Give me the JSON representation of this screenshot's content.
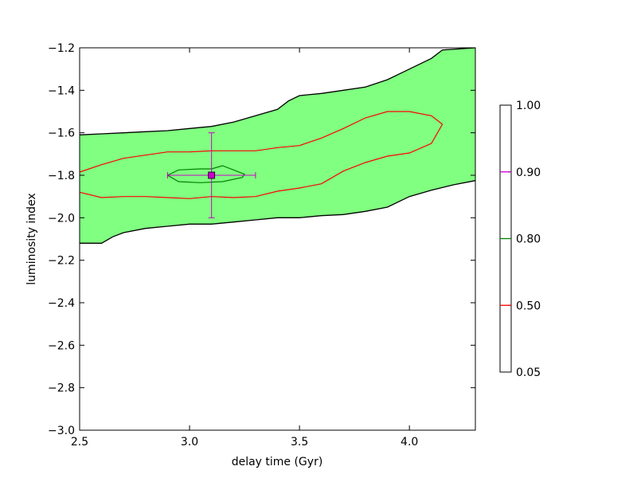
{
  "chart_data": {
    "type": "contour",
    "title": "",
    "xlabel": "delay time (Gyr)",
    "ylabel": "luminosity index",
    "xlim": [
      2.5,
      4.3
    ],
    "ylim": [
      -3.0,
      -1.2
    ],
    "x_ticks": [
      2.5,
      3.0,
      3.5,
      4.0
    ],
    "x_tick_labels": [
      "2.5",
      "3.0",
      "3.5",
      "4.0"
    ],
    "y_ticks": [
      -3.0,
      -2.8,
      -2.6,
      -2.4,
      -2.2,
      -2.0,
      -1.8,
      -1.6,
      -1.4,
      -1.2
    ],
    "y_tick_labels": [
      "−3.0",
      "−2.8",
      "−2.6",
      "−2.4",
      "−2.2",
      "−2.0",
      "−1.8",
      "−1.6",
      "−1.4",
      "−1.2"
    ],
    "grid": false,
    "fill_color": "#80ff80",
    "contours": [
      {
        "level": "0.05",
        "color": "#000000",
        "filled": true,
        "upper": [
          [
            2.5,
            -1.61
          ],
          [
            2.6,
            -1.605
          ],
          [
            2.7,
            -1.6
          ],
          [
            2.8,
            -1.595
          ],
          [
            2.9,
            -1.59
          ],
          [
            3.0,
            -1.58
          ],
          [
            3.1,
            -1.57
          ],
          [
            3.2,
            -1.55
          ],
          [
            3.3,
            -1.52
          ],
          [
            3.4,
            -1.49
          ],
          [
            3.45,
            -1.45
          ],
          [
            3.5,
            -1.425
          ],
          [
            3.6,
            -1.415
          ],
          [
            3.7,
            -1.4
          ],
          [
            3.8,
            -1.385
          ],
          [
            3.9,
            -1.35
          ],
          [
            4.0,
            -1.3
          ],
          [
            4.1,
            -1.25
          ],
          [
            4.15,
            -1.21
          ],
          [
            4.3,
            -1.2
          ]
        ],
        "lower": [
          [
            2.5,
            -2.12
          ],
          [
            2.6,
            -2.12
          ],
          [
            2.65,
            -2.09
          ],
          [
            2.7,
            -2.07
          ],
          [
            2.8,
            -2.05
          ],
          [
            2.9,
            -2.04
          ],
          [
            3.0,
            -2.03
          ],
          [
            3.1,
            -2.03
          ],
          [
            3.2,
            -2.02
          ],
          [
            3.3,
            -2.01
          ],
          [
            3.4,
            -2.0
          ],
          [
            3.5,
            -2.0
          ],
          [
            3.6,
            -1.99
          ],
          [
            3.7,
            -1.985
          ],
          [
            3.8,
            -1.97
          ],
          [
            3.9,
            -1.95
          ],
          [
            4.0,
            -1.9
          ],
          [
            4.1,
            -1.87
          ],
          [
            4.2,
            -1.845
          ],
          [
            4.3,
            -1.825
          ]
        ]
      },
      {
        "level": "0.50",
        "color": "#ff0000",
        "filled": false,
        "upper": [
          [
            2.5,
            -1.785
          ],
          [
            2.6,
            -1.75
          ],
          [
            2.7,
            -1.72
          ],
          [
            2.8,
            -1.705
          ],
          [
            2.9,
            -1.69
          ],
          [
            3.0,
            -1.69
          ],
          [
            3.1,
            -1.685
          ],
          [
            3.2,
            -1.685
          ],
          [
            3.3,
            -1.685
          ],
          [
            3.4,
            -1.67
          ],
          [
            3.5,
            -1.66
          ],
          [
            3.6,
            -1.625
          ],
          [
            3.7,
            -1.58
          ],
          [
            3.8,
            -1.53
          ],
          [
            3.9,
            -1.5
          ],
          [
            4.0,
            -1.5
          ],
          [
            4.1,
            -1.52
          ],
          [
            4.15,
            -1.56
          ]
        ],
        "lower": [
          [
            2.5,
            -1.88
          ],
          [
            2.6,
            -1.905
          ],
          [
            2.7,
            -1.9
          ],
          [
            2.8,
            -1.9
          ],
          [
            2.9,
            -1.905
          ],
          [
            3.0,
            -1.91
          ],
          [
            3.1,
            -1.9
          ],
          [
            3.2,
            -1.905
          ],
          [
            3.3,
            -1.9
          ],
          [
            3.4,
            -1.875
          ],
          [
            3.5,
            -1.86
          ],
          [
            3.6,
            -1.84
          ],
          [
            3.7,
            -1.78
          ],
          [
            3.8,
            -1.74
          ],
          [
            3.9,
            -1.71
          ],
          [
            4.0,
            -1.695
          ],
          [
            4.1,
            -1.65
          ],
          [
            4.15,
            -1.56
          ]
        ]
      },
      {
        "level": "0.80",
        "color": "#008000",
        "filled": false,
        "closed": [
          [
            2.9,
            -1.8
          ],
          [
            2.95,
            -1.775
          ],
          [
            3.05,
            -1.77
          ],
          [
            3.1,
            -1.77
          ],
          [
            3.15,
            -1.755
          ],
          [
            3.2,
            -1.775
          ],
          [
            3.25,
            -1.795
          ],
          [
            3.24,
            -1.81
          ],
          [
            3.15,
            -1.83
          ],
          [
            3.05,
            -1.835
          ],
          [
            2.95,
            -1.83
          ],
          [
            2.9,
            -1.8
          ]
        ]
      }
    ],
    "point": {
      "x": 3.1,
      "y": -1.8,
      "xerr": 0.2,
      "yerr": 0.2,
      "color": "#cc00cc",
      "marker": "square"
    },
    "colorbar": {
      "ticks": [
        "0.05",
        "0.50",
        "0.80",
        "0.90",
        "1.00"
      ],
      "line_levels": [
        {
          "label": "0.50",
          "color": "#ff0000"
        },
        {
          "label": "0.80",
          "color": "#008000"
        },
        {
          "label": "0.90",
          "color": "#cc00cc"
        }
      ]
    }
  }
}
